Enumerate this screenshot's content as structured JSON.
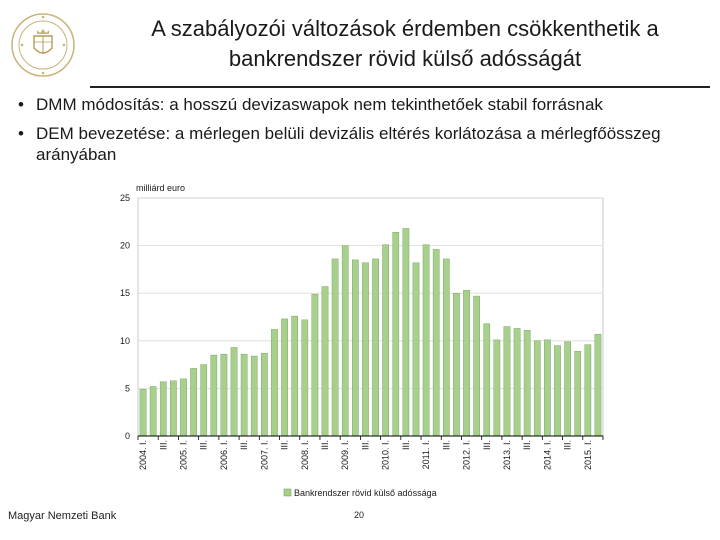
{
  "slide": {
    "title_line1": "A szabályozói változások érdemben csökkenthetik a",
    "title_line2": "bankrendszer rövid külső adósságát",
    "bullets": [
      "DMM módosítás: a hosszú devizaswapok nem tekinthetőek stabil forrásnak",
      "DEM bevezetése: a mérlegen belüli devizális eltérés korlátozása a mérlegfőösszeg arányában"
    ],
    "footer": "Magyar Nemzeti Bank",
    "page_number": "20"
  },
  "colors": {
    "bar": "#a8d08d",
    "bar_edge": "#6f9a52",
    "grid": "#d9d9d9",
    "axis": "#000000"
  },
  "chart_data": {
    "type": "bar",
    "title": "",
    "ylabel": "milliárd euro",
    "xlabel": "",
    "ylim": [
      0,
      25
    ],
    "yticks": [
      0,
      5,
      10,
      15,
      20,
      25
    ],
    "legend": "Bankrendszer rövid külső adóssága",
    "legend_position": "bottom",
    "grid": true,
    "tick_labels": [
      "2004. I.",
      "III.",
      "2005. I.",
      "III.",
      "2006. I.",
      "III.",
      "2007. I.",
      "III.",
      "2008. I.",
      "III.",
      "2009. I.",
      "III.",
      "2010. I.",
      "III.",
      "2011. I.",
      "III.",
      "2012. I.",
      "III.",
      "2013. I.",
      "III.",
      "2014. I.",
      "III.",
      "2015. I."
    ],
    "categories": [
      "2004 Q1",
      "2004 Q2",
      "2004 Q3",
      "2004 Q4",
      "2005 Q1",
      "2005 Q2",
      "2005 Q3",
      "2005 Q4",
      "2006 Q1",
      "2006 Q2",
      "2006 Q3",
      "2006 Q4",
      "2007 Q1",
      "2007 Q2",
      "2007 Q3",
      "2007 Q4",
      "2008 Q1",
      "2008 Q2",
      "2008 Q3",
      "2008 Q4",
      "2009 Q1",
      "2009 Q2",
      "2009 Q3",
      "2009 Q4",
      "2010 Q1",
      "2010 Q2",
      "2010 Q3",
      "2010 Q4",
      "2011 Q1",
      "2011 Q2",
      "2011 Q3",
      "2011 Q4",
      "2012 Q1",
      "2012 Q2",
      "2012 Q3",
      "2012 Q4",
      "2013 Q1",
      "2013 Q2",
      "2013 Q3",
      "2013 Q4",
      "2014 Q1",
      "2014 Q2",
      "2014 Q3",
      "2014 Q4",
      "2015 Q1",
      "2015 Q2"
    ],
    "values": [
      4.9,
      5.2,
      5.7,
      5.8,
      6.0,
      7.1,
      7.5,
      8.5,
      8.6,
      9.3,
      8.6,
      8.4,
      8.7,
      11.2,
      12.3,
      12.6,
      12.2,
      14.9,
      15.7,
      18.6,
      20.0,
      18.5,
      18.2,
      18.6,
      20.1,
      21.4,
      21.8,
      18.2,
      20.1,
      19.6,
      18.6,
      15.0,
      15.3,
      14.7,
      11.8,
      10.1,
      11.5,
      11.3,
      11.1,
      10.0,
      10.1,
      9.5,
      9.9,
      8.9,
      9.6,
      10.7
    ]
  }
}
